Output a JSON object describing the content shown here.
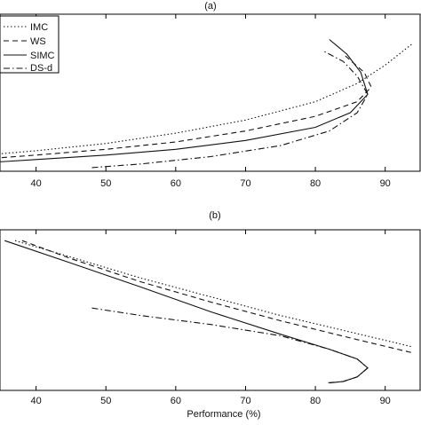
{
  "chart_data": [
    {
      "panel": "(a)",
      "type": "line",
      "title": "(a)",
      "xlabel": "",
      "ylabel": "",
      "xlim": [
        30,
        95
      ],
      "xticks": [
        40,
        50,
        60,
        70,
        80,
        90
      ],
      "legend": {
        "placement": "top-left",
        "entries": [
          "IMC",
          "WS",
          "SIMC",
          "DS-d"
        ]
      },
      "series": [
        {
          "name": "IMC",
          "style": "dotted",
          "x": [
            30,
            40,
            50,
            60,
            70,
            80,
            86,
            90,
            94
          ],
          "y": [
            0.2,
            0.28,
            0.38,
            0.52,
            0.7,
            0.95,
            1.2,
            1.45,
            1.75
          ]
        },
        {
          "name": "WS",
          "style": "dashed",
          "x": [
            30,
            40,
            50,
            60,
            70,
            80,
            86,
            88,
            87,
            84
          ],
          "y": [
            0.15,
            0.22,
            0.3,
            0.4,
            0.55,
            0.75,
            0.95,
            1.15,
            1.35,
            1.6
          ]
        },
        {
          "name": "SIMC",
          "style": "solid",
          "x": [
            30,
            40,
            50,
            60,
            70,
            80,
            85,
            87.5,
            86.5,
            84.5,
            82
          ],
          "y": [
            0.1,
            0.16,
            0.22,
            0.3,
            0.42,
            0.6,
            0.8,
            1.05,
            1.35,
            1.6,
            1.8
          ]
        },
        {
          "name": "DS-d",
          "style": "dashdot",
          "x": [
            48,
            55,
            65,
            75,
            82,
            86,
            87.5,
            86,
            84,
            81
          ],
          "y": [
            0.05,
            0.1,
            0.2,
            0.35,
            0.55,
            0.8,
            1.05,
            1.3,
            1.5,
            1.65
          ]
        }
      ]
    },
    {
      "panel": "(b)",
      "type": "line",
      "title": "(b)",
      "xlabel": "Performance (%)",
      "ylabel": "",
      "xlim": [
        30,
        95
      ],
      "xticks": [
        40,
        50,
        60,
        70,
        80,
        90
      ],
      "series": [
        {
          "name": "IMC",
          "style": "dotted",
          "x": [
            37,
            45,
            55,
            65,
            75,
            85,
            94
          ],
          "y": [
            2.0,
            1.78,
            1.5,
            1.25,
            1.0,
            0.78,
            0.58
          ]
        },
        {
          "name": "WS",
          "style": "dashed",
          "x": [
            38,
            45,
            55,
            65,
            75,
            85,
            94
          ],
          "y": [
            2.0,
            1.76,
            1.45,
            1.18,
            0.93,
            0.7,
            0.5
          ]
        },
        {
          "name": "SIMC",
          "style": "solid",
          "x": [
            35.5,
            45,
            55,
            65,
            75,
            82,
            86,
            87.5,
            86,
            84,
            82
          ],
          "y": [
            2.0,
            1.7,
            1.38,
            1.05,
            0.75,
            0.55,
            0.42,
            0.3,
            0.18,
            0.12,
            0.1
          ]
        },
        {
          "name": "DS-d",
          "style": "dashdot",
          "x": [
            48,
            55,
            65,
            75,
            82,
            86,
            87.5,
            86,
            84,
            81.5
          ],
          "y": [
            1.1,
            1.0,
            0.88,
            0.73,
            0.55,
            0.42,
            0.3,
            0.18,
            0.12,
            0.1
          ]
        }
      ]
    }
  ]
}
